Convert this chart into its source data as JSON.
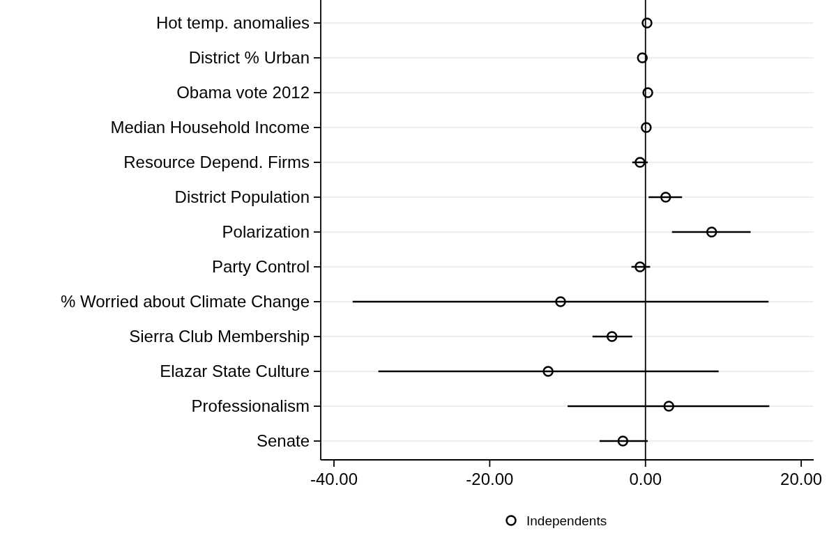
{
  "chart_data": {
    "type": "scatter",
    "orientation": "horizontal",
    "categories": [
      "Hot temp. anomalies",
      "District % Urban",
      "Obama vote 2012",
      "Median Household Income",
      "Resource Depend. Firms",
      "District Population",
      "Polarization",
      "Party Control",
      "% Worried about Climate Change",
      "Sierra Club Membership",
      "Elazar State Culture",
      "Professionalism",
      "Senate"
    ],
    "series": [
      {
        "name": "Independents",
        "color": "#000000",
        "values": [
          0.2,
          -0.4,
          0.3,
          0.1,
          -0.7,
          2.6,
          8.5,
          -0.7,
          -10.9,
          -4.3,
          -12.5,
          3.0,
          -2.9
        ],
        "errors": [
          null,
          null,
          null,
          null,
          [
            -1.7,
            0.3
          ],
          [
            0.4,
            4.7
          ],
          [
            3.4,
            13.5
          ],
          [
            -1.8,
            0.6
          ],
          [
            -37.6,
            15.8
          ],
          [
            -6.8,
            -1.7
          ],
          [
            -34.3,
            9.4
          ],
          [
            -10.0,
            15.9
          ],
          [
            -5.9,
            0.3
          ]
        ]
      }
    ],
    "xlim": [
      -41.7,
      21.6
    ],
    "xticks": [
      {
        "value": -40,
        "label": "-40.00"
      },
      {
        "value": -20,
        "label": "-20.00"
      },
      {
        "value": 0,
        "label": "0.00"
      },
      {
        "value": 20,
        "label": "20.00"
      }
    ],
    "ref_lines": [
      {
        "axis": "x",
        "value": 0,
        "color": "#000000"
      }
    ],
    "grid": "y",
    "legend": "bottom",
    "marker": "circle"
  }
}
